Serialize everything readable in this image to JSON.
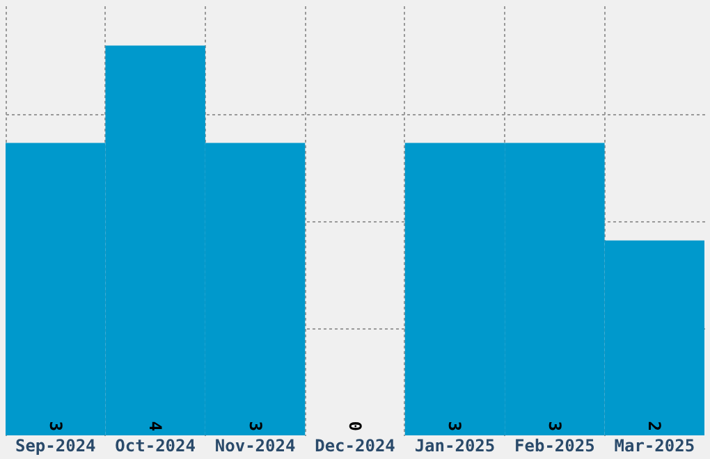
{
  "chart_data": {
    "type": "bar",
    "categories": [
      "Sep-2024",
      "Oct-2024",
      "Nov-2024",
      "Dec-2024",
      "Jan-2025",
      "Feb-2025",
      "Mar-2025"
    ],
    "values": [
      3,
      4,
      3,
      0,
      3,
      3,
      2
    ],
    "color": "#0099cc",
    "data_labels": true,
    "ylim": [
      0,
      4.41
    ],
    "yticks": [
      {
        "value": 1.1,
        "label": null
      },
      {
        "value": 2.2,
        "label": null
      },
      {
        "value": 3.3,
        "label": null
      }
    ],
    "grid": true,
    "tick_labels": "x"
  }
}
